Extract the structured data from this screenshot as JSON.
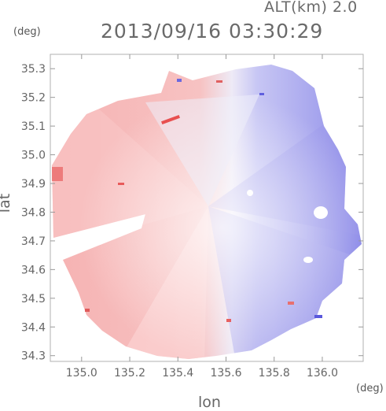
{
  "header": {
    "altitude_label": "ALT(km) 2.0",
    "timestamp": "2013/09/16 03:30:29"
  },
  "chart_data": {
    "type": "heatmap",
    "title": "2013/09/16 03:30:29",
    "xlabel": "lon",
    "ylabel": "lat",
    "x_unit": "(deg)",
    "y_unit": "(deg)",
    "xlim": [
      134.87,
      136.17
    ],
    "ylim": [
      34.28,
      35.35
    ],
    "x_ticks": [
      135.0,
      135.2,
      135.4,
      135.6,
      135.8,
      136.0
    ],
    "y_ticks": [
      34.3,
      34.4,
      34.5,
      34.6,
      34.7,
      34.8,
      34.9,
      35.0,
      35.1,
      35.2,
      35.3
    ],
    "x_tick_labels": [
      "135.0",
      "135.2",
      "135.4",
      "135.6",
      "135.8",
      "136.0"
    ],
    "y_tick_labels": [
      "34.3",
      "34.4",
      "34.5",
      "34.6",
      "34.7",
      "34.8",
      "34.9",
      "35.0",
      "35.1",
      "35.2",
      "35.3"
    ],
    "radar_center": {
      "lon": 135.52,
      "lat": 34.82
    },
    "colors": {
      "positive": "#f07070",
      "negative": "#7a7ae8",
      "neutral": "#ffffff"
    },
    "grid": false
  }
}
